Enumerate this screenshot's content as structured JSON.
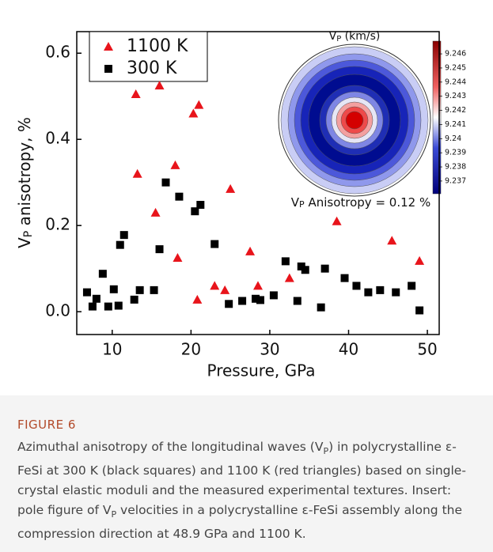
{
  "chart_data": {
    "type": "scatter",
    "xlabel": "Pressure, GPa",
    "ylabel": [
      "V",
      "P",
      " anisotropy, %"
    ],
    "xlim": [
      5.5,
      51.5
    ],
    "xticks": [
      10,
      20,
      30,
      40,
      50
    ],
    "ylim": [
      -0.053,
      0.65
    ],
    "yticks": [
      {
        "value": 0,
        "label": "0.0"
      },
      0.2,
      0.4,
      0.6
    ],
    "legend": "upper left",
    "series": [
      {
        "name": "1100 K",
        "color": "#e8141b",
        "marker": "triangle",
        "x": [
          13,
          16,
          13.2,
          15.5,
          18,
          18.3,
          20.3,
          21,
          20.8,
          23,
          24.3,
          25,
          27.5,
          28.5,
          32.5,
          38.5,
          45.5,
          49
        ],
        "values": [
          0.505,
          0.525,
          0.32,
          0.23,
          0.34,
          0.125,
          0.46,
          0.48,
          0.028,
          0.06,
          0.05,
          0.285,
          0.14,
          0.06,
          0.078,
          0.21,
          0.165,
          0.118
        ]
      },
      {
        "name": "300 K",
        "color": "#000000",
        "marker": "square",
        "x": [
          6.8,
          7.5,
          8,
          8.8,
          9.5,
          10.2,
          10.8,
          11,
          11.5,
          12.8,
          13.5,
          15.3,
          16,
          16.8,
          18.5,
          20.5,
          21.2,
          23,
          24.8,
          26.5,
          28.2,
          28.8,
          30.5,
          32,
          33.5,
          34,
          34.5,
          36.5,
          37,
          39.5,
          41,
          42.5,
          44,
          46,
          48,
          49
        ],
        "values": [
          0.045,
          0.012,
          0.03,
          0.088,
          0.012,
          0.052,
          0.014,
          0.155,
          0.178,
          0.028,
          0.05,
          0.05,
          0.145,
          0.3,
          0.267,
          0.233,
          0.248,
          0.157,
          0.018,
          0.025,
          0.03,
          0.027,
          0.038,
          0.117,
          0.025,
          0.105,
          0.097,
          0.01,
          0.1,
          0.078,
          0.06,
          0.045,
          0.05,
          0.045,
          0.06,
          0.003
        ]
      }
    ],
    "inset": {
      "title": [
        "V",
        "P",
        " (km/s)"
      ],
      "note": [
        "V",
        "P",
        " Anisotropy = 0.12 %"
      ],
      "clim": [
        9.2361,
        9.2469
      ],
      "cticks": [
        9.237,
        9.238,
        9.239,
        9.24,
        9.241,
        9.242,
        9.243,
        9.244,
        9.245,
        9.246
      ]
    }
  },
  "caption": {
    "label": "FIGURE 6",
    "text": [
      "Azimuthal anisotropy of the longitudinal waves (V",
      "P",
      ") in polycrystalline ε-FeSi at 300 K (black squares) and 1100 K (red triangles) based on single-crystal elastic moduli and the measured experimental textures. Insert: pole figure of V",
      "P",
      " velocities in a polycrystalline ε-FeSi assembly along the compression direction at 48.9 GPa and 1100 K."
    ]
  }
}
